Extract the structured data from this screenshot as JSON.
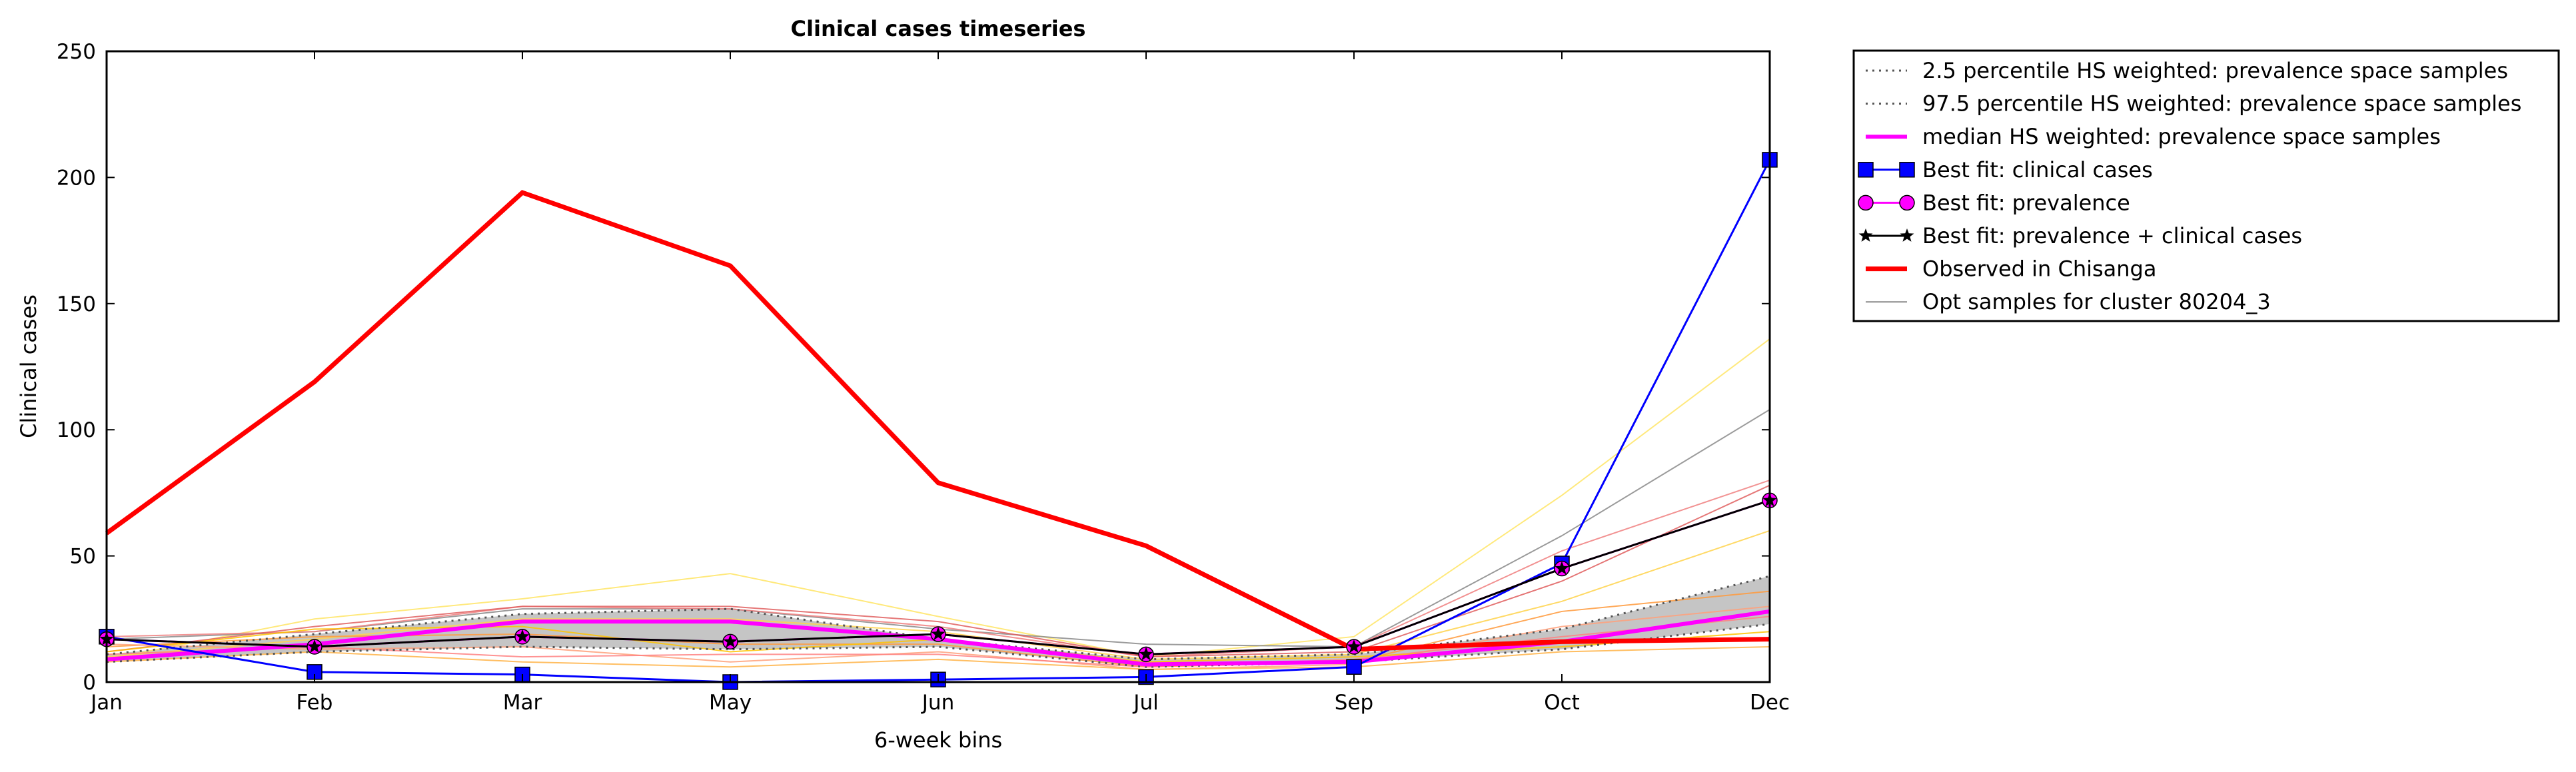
{
  "chart_data": {
    "type": "line",
    "title": "Clinical cases timeseries",
    "xlabel": "6-week bins",
    "ylabel": "Clinical cases",
    "categories": [
      "Jan",
      "Feb",
      "Mar",
      "May",
      "Jun",
      "Jul",
      "Sep",
      "Oct",
      "Dec"
    ],
    "ylim": [
      0,
      250
    ],
    "yticks": [
      "0",
      "50",
      "100",
      "150",
      "200",
      "250"
    ],
    "grid": false,
    "legend_position": "outside-right-top",
    "band": {
      "lower": [
        8,
        12,
        14,
        13,
        14,
        6,
        8,
        13,
        23
      ],
      "upper": [
        11,
        19,
        27,
        29,
        17,
        9,
        11,
        21,
        42
      ],
      "color": "#bbbbbb"
    },
    "samples": [
      {
        "values": [
          9,
          25,
          33,
          43,
          26,
          10,
          18,
          74,
          136
        ],
        "color": "#ffe566"
      },
      {
        "values": [
          17,
          20,
          29,
          29,
          21,
          15,
          14,
          58,
          108
        ],
        "color": "#8a8a8a"
      },
      {
        "values": [
          18,
          20,
          30,
          29,
          22,
          10,
          14,
          52,
          80
        ],
        "color": "#f08080"
      },
      {
        "values": [
          12,
          22,
          30,
          30,
          24,
          10,
          12,
          40,
          78
        ],
        "color": "#e06060"
      },
      {
        "values": [
          10,
          17,
          25,
          25,
          20,
          9,
          11,
          32,
          60
        ],
        "color": "#ffd34d"
      },
      {
        "values": [
          14,
          18,
          19,
          15,
          15,
          6,
          8,
          28,
          36
        ],
        "color": "#ff9a3c"
      },
      {
        "values": [
          15,
          13,
          14,
          8,
          12,
          5,
          7,
          22,
          30
        ],
        "color": "#ffa07a"
      },
      {
        "values": [
          11,
          14,
          10,
          11,
          11,
          6,
          9,
          18,
          26
        ],
        "color": "#ff8080"
      },
      {
        "values": [
          12,
          21,
          22,
          12,
          17,
          8,
          10,
          14,
          20
        ],
        "color": "#ffc300"
      },
      {
        "values": [
          8,
          12,
          8,
          6,
          9,
          5,
          6,
          12,
          14
        ],
        "color": "#ffb347"
      }
    ],
    "series": [
      {
        "name": "2.5 percentile HS weighted: prevalence space samples",
        "values": [
          8,
          12,
          14,
          13,
          14,
          6,
          8,
          13,
          23
        ],
        "color": "#555555",
        "style": "dotted"
      },
      {
        "name": "97.5 percentile HS weighted: prevalence space samples",
        "values": [
          11,
          19,
          27,
          29,
          17,
          9,
          11,
          21,
          42
        ],
        "color": "#555555",
        "style": "dotted"
      },
      {
        "name": "median HS weighted: prevalence space samples",
        "values": [
          9,
          15,
          24,
          24,
          17,
          7,
          8,
          16,
          28
        ],
        "color": "#ff00ff",
        "style": "solid"
      },
      {
        "name": "Best fit: clinical cases",
        "values": [
          18,
          4,
          3,
          0,
          1,
          2,
          6,
          47,
          207
        ],
        "color": "#0000ff",
        "marker": "square"
      },
      {
        "name": "Best fit: prevalence",
        "values": [
          17,
          14,
          18,
          16,
          19,
          11,
          14,
          45,
          72
        ],
        "color": "#ff00ff",
        "marker": "circle"
      },
      {
        "name": "Best fit: prevalence + clinical cases",
        "values": [
          17,
          14,
          18,
          16,
          19,
          11,
          14,
          45,
          72
        ],
        "color": "#000000",
        "marker": "star"
      },
      {
        "name": "Observed in Chisanga",
        "values": [
          59,
          119,
          194,
          165,
          79,
          54,
          13,
          16,
          17
        ],
        "color": "#ff0000",
        "style": "thick"
      },
      {
        "name": "Opt samples for cluster 80204_3",
        "color": "#8a8a8a",
        "style": "thin"
      }
    ]
  }
}
